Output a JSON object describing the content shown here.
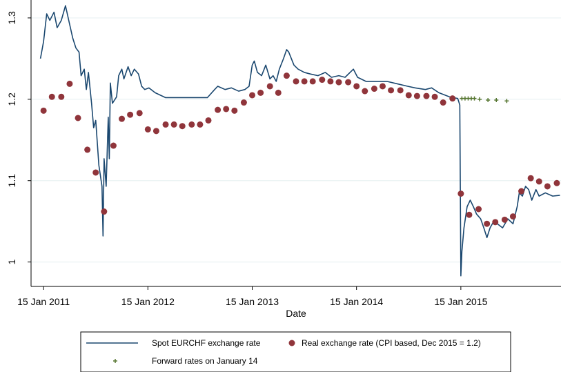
{
  "chart_data": {
    "type": "line",
    "xlabel": "Date",
    "xlim": [
      2010.92,
      2016.0
    ],
    "xticks": [
      {
        "value": 2011.04,
        "label": "15 Jan 2011"
      },
      {
        "value": 2012.04,
        "label": "15 Jan 2012"
      },
      {
        "value": 2013.04,
        "label": "15 Jan 2013"
      },
      {
        "value": 2014.04,
        "label": "15 Jan 2014"
      },
      {
        "value": 2015.04,
        "label": "15 Jan 2015"
      }
    ],
    "ylim": [
      0.97,
      1.322
    ],
    "yticks": [
      1,
      1.1,
      1.2,
      1.3
    ],
    "grid": true,
    "legend": "bottom",
    "series": [
      {
        "name": "Spot EURCHF exchange rate",
        "type": "line",
        "color": "#1a476f",
        "x": [
          2011.01,
          2011.04,
          2011.07,
          2011.1,
          2011.14,
          2011.17,
          2011.21,
          2011.25,
          2011.29,
          2011.32,
          2011.35,
          2011.38,
          2011.4,
          2011.43,
          2011.45,
          2011.47,
          2011.5,
          2011.52,
          2011.54,
          2011.57,
          2011.6,
          2011.61,
          2011.62,
          2011.64,
          2011.66,
          2011.67,
          2011.68,
          2011.7,
          2011.74,
          2011.76,
          2011.79,
          2011.81,
          2011.85,
          2011.88,
          2011.91,
          2011.95,
          2011.98,
          2012.01,
          2012.05,
          2012.11,
          2012.21,
          2012.34,
          2012.48,
          2012.61,
          2012.68,
          2012.71,
          2012.78,
          2012.84,
          2012.91,
          2012.97,
          2013.01,
          2013.04,
          2013.06,
          2013.09,
          2013.13,
          2013.17,
          2013.21,
          2013.24,
          2013.27,
          2013.3,
          2013.34,
          2013.37,
          2013.39,
          2013.44,
          2013.48,
          2013.54,
          2013.6,
          2013.67,
          2013.74,
          2013.8,
          2013.87,
          2013.93,
          2014.01,
          2014.05,
          2014.13,
          2014.23,
          2014.33,
          2014.43,
          2014.53,
          2014.6,
          2014.7,
          2014.76,
          2014.83,
          2014.93,
          2015.01,
          2015.03,
          2015.04,
          2015.05,
          2015.07,
          2015.1,
          2015.13,
          2015.16,
          2015.19,
          2015.23,
          2015.26,
          2015.29,
          2015.32,
          2015.36,
          2015.39,
          2015.44,
          2015.49,
          2015.54,
          2015.58,
          2015.6,
          2015.63,
          2015.66,
          2015.69,
          2015.72,
          2015.76,
          2015.79,
          2015.85,
          2015.92,
          2015.99
        ],
        "values": [
          1.25,
          1.271,
          1.305,
          1.297,
          1.307,
          1.288,
          1.297,
          1.315,
          1.292,
          1.275,
          1.263,
          1.258,
          1.229,
          1.237,
          1.212,
          1.233,
          1.195,
          1.165,
          1.174,
          1.119,
          1.093,
          1.032,
          1.127,
          1.093,
          1.178,
          1.127,
          1.22,
          1.195,
          1.203,
          1.229,
          1.237,
          1.225,
          1.24,
          1.229,
          1.237,
          1.231,
          1.216,
          1.212,
          1.214,
          1.208,
          1.202,
          1.202,
          1.202,
          1.202,
          1.212,
          1.216,
          1.212,
          1.214,
          1.21,
          1.212,
          1.216,
          1.242,
          1.247,
          1.233,
          1.229,
          1.242,
          1.225,
          1.229,
          1.222,
          1.237,
          1.25,
          1.261,
          1.258,
          1.242,
          1.237,
          1.233,
          1.231,
          1.229,
          1.233,
          1.227,
          1.229,
          1.227,
          1.237,
          1.227,
          1.222,
          1.222,
          1.222,
          1.219,
          1.216,
          1.214,
          1.212,
          1.214,
          1.208,
          1.203,
          1.201,
          1.193,
          0.983,
          1.013,
          1.042,
          1.068,
          1.076,
          1.068,
          1.059,
          1.053,
          1.042,
          1.03,
          1.042,
          1.051,
          1.047,
          1.042,
          1.053,
          1.047,
          1.068,
          1.085,
          1.081,
          1.093,
          1.089,
          1.076,
          1.089,
          1.081,
          1.085,
          1.081,
          1.082
        ]
      },
      {
        "name": "Real exchange rate (CPI based, Dec 2015 = 1.2)",
        "type": "scatter",
        "marker": "circle",
        "color": "#90353b",
        "x": [
          2011.04,
          2011.12,
          2011.21,
          2011.29,
          2011.37,
          2011.46,
          2011.54,
          2011.62,
          2011.71,
          2011.79,
          2011.87,
          2011.96,
          2012.04,
          2012.12,
          2012.21,
          2012.29,
          2012.37,
          2012.46,
          2012.54,
          2012.62,
          2012.71,
          2012.79,
          2012.87,
          2012.96,
          2013.04,
          2013.12,
          2013.21,
          2013.29,
          2013.37,
          2013.46,
          2013.54,
          2013.62,
          2013.71,
          2013.79,
          2013.87,
          2013.96,
          2014.04,
          2014.12,
          2014.21,
          2014.29,
          2014.37,
          2014.46,
          2014.54,
          2014.62,
          2014.71,
          2014.79,
          2014.87,
          2014.96,
          2015.04,
          2015.12,
          2015.21,
          2015.29,
          2015.37,
          2015.46,
          2015.54,
          2015.62,
          2015.71,
          2015.79,
          2015.87,
          2015.96
        ],
        "values": [
          1.186,
          1.203,
          1.203,
          1.219,
          1.177,
          1.138,
          1.11,
          1.062,
          1.143,
          1.176,
          1.181,
          1.183,
          1.163,
          1.161,
          1.169,
          1.169,
          1.167,
          1.169,
          1.169,
          1.174,
          1.187,
          1.188,
          1.186,
          1.196,
          1.205,
          1.208,
          1.216,
          1.208,
          1.229,
          1.222,
          1.222,
          1.222,
          1.224,
          1.222,
          1.221,
          1.221,
          1.216,
          1.21,
          1.213,
          1.216,
          1.211,
          1.211,
          1.205,
          1.204,
          1.204,
          1.203,
          1.196,
          1.201,
          1.084,
          1.058,
          1.065,
          1.047,
          1.049,
          1.052,
          1.056,
          1.087,
          1.103,
          1.099,
          1.093,
          1.097
        ]
      },
      {
        "name": "Forward rates on January 14",
        "type": "scatter",
        "marker": "plus",
        "color": "#55752f",
        "x": [
          2015.05,
          2015.08,
          2015.11,
          2015.14,
          2015.17,
          2015.22,
          2015.3,
          2015.38,
          2015.48
        ],
        "values": [
          1.201,
          1.201,
          1.201,
          1.201,
          1.201,
          1.2,
          1.199,
          1.199,
          1.198
        ]
      }
    ]
  }
}
